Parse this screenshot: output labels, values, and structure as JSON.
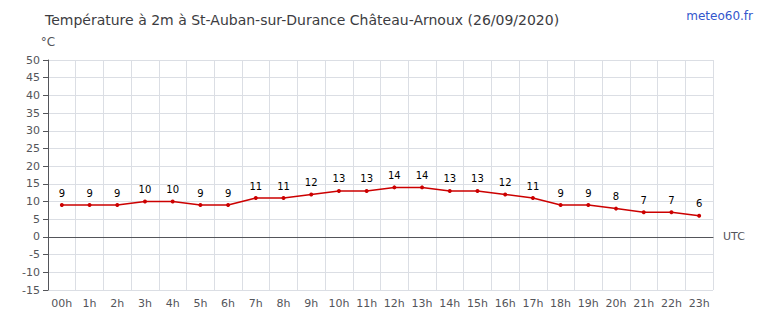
{
  "chart_data": {
    "type": "line",
    "title": "Température à 2m à St-Auban-sur-Durance Château-Arnoux (26/09/2020)",
    "ylabel": "°C",
    "xlabel": "UTC",
    "annotations": [
      "meteo60.fr"
    ],
    "categories": [
      "00h",
      "1h",
      "2h",
      "3h",
      "4h",
      "5h",
      "6h",
      "7h",
      "8h",
      "9h",
      "10h",
      "11h",
      "12h",
      "13h",
      "14h",
      "15h",
      "16h",
      "17h",
      "18h",
      "19h",
      "20h",
      "21h",
      "22h",
      "23h"
    ],
    "values": [
      9,
      9,
      9,
      10,
      10,
      9,
      9,
      11,
      11,
      12,
      13,
      13,
      14,
      14,
      13,
      13,
      12,
      11,
      9,
      9,
      8,
      7,
      7,
      6
    ],
    "color": "#cc0000",
    "ylim": [
      -15,
      50
    ],
    "yticks": [
      -15,
      -10,
      -5,
      0,
      5,
      10,
      15,
      20,
      25,
      30,
      35,
      40,
      45,
      50
    ],
    "grid": true,
    "data_labels": true
  }
}
